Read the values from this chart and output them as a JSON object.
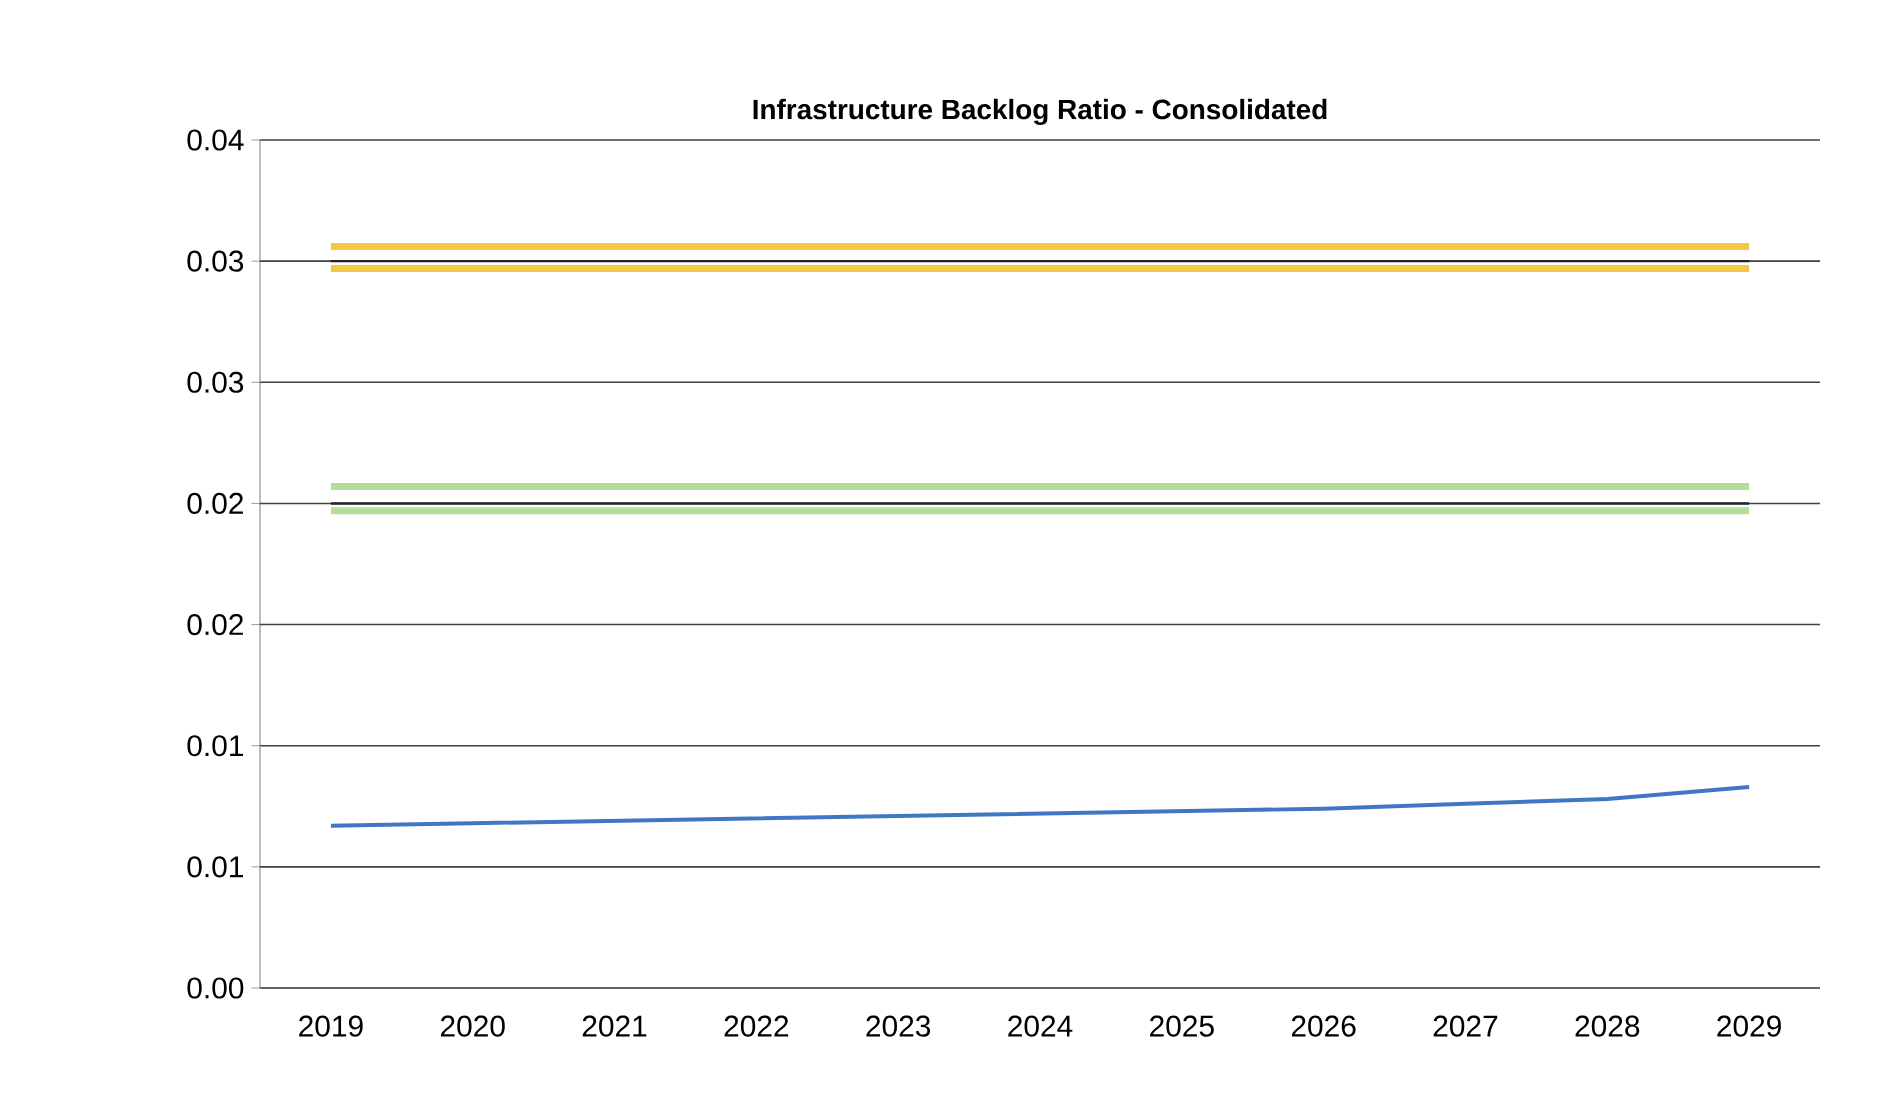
{
  "chart_data": {
    "type": "line",
    "title": "Infrastructure Backlog Ratio - Consolidated",
    "categories": [
      "2019",
      "2020",
      "2021",
      "2022",
      "2023",
      "2024",
      "2025",
      "2026",
      "2027",
      "2028",
      "2029"
    ],
    "series": [
      {
        "color": "#f5c842",
        "values": [
          0.0306,
          0.0306,
          0.0306,
          0.0306,
          0.0306,
          0.0306,
          0.0306,
          0.0306,
          0.0306,
          0.0306,
          0.0306
        ]
      },
      {
        "color": "#f5c842",
        "values": [
          0.0297,
          0.0297,
          0.0297,
          0.0297,
          0.0297,
          0.0297,
          0.0297,
          0.0297,
          0.0297,
          0.0297,
          0.0297
        ]
      },
      {
        "color": "#222222",
        "values": [
          0.03,
          0.03,
          0.03,
          0.03,
          0.03,
          0.03,
          0.03,
          0.03,
          0.03,
          0.03,
          0.03
        ]
      },
      {
        "color": "#b5dd9a",
        "values": [
          0.0207,
          0.0207,
          0.0207,
          0.0207,
          0.0207,
          0.0207,
          0.0207,
          0.0207,
          0.0207,
          0.0207,
          0.0207
        ]
      },
      {
        "color": "#b5dd9a",
        "values": [
          0.0197,
          0.0197,
          0.0197,
          0.0197,
          0.0197,
          0.0197,
          0.0197,
          0.0197,
          0.0197,
          0.0197,
          0.0197
        ]
      },
      {
        "color": "#222222",
        "values": [
          0.02,
          0.02,
          0.02,
          0.02,
          0.02,
          0.02,
          0.02,
          0.02,
          0.02,
          0.02,
          0.02
        ]
      },
      {
        "color": "#3f78c0",
        "values": [
          0.0067,
          0.0068,
          0.0069,
          0.007,
          0.0071,
          0.0072,
          0.0073,
          0.0074,
          0.0076,
          0.0078,
          0.0083
        ]
      }
    ],
    "ylim": [
      0,
      0.035
    ],
    "yticks": [
      {
        "value": 0,
        "label": "0.00"
      },
      {
        "value": 0.005,
        "label": "0.01"
      },
      {
        "value": 0.01,
        "label": "0.01"
      },
      {
        "value": 0.015,
        "label": "0.02"
      },
      {
        "value": 0.02,
        "label": "0.02"
      },
      {
        "value": 0.025,
        "label": "0.03"
      },
      {
        "value": 0.03,
        "label": "0.03"
      },
      {
        "value": 0.035,
        "label": "0.04"
      }
    ],
    "grid": "y",
    "marker": "none",
    "line_style": "solid"
  }
}
